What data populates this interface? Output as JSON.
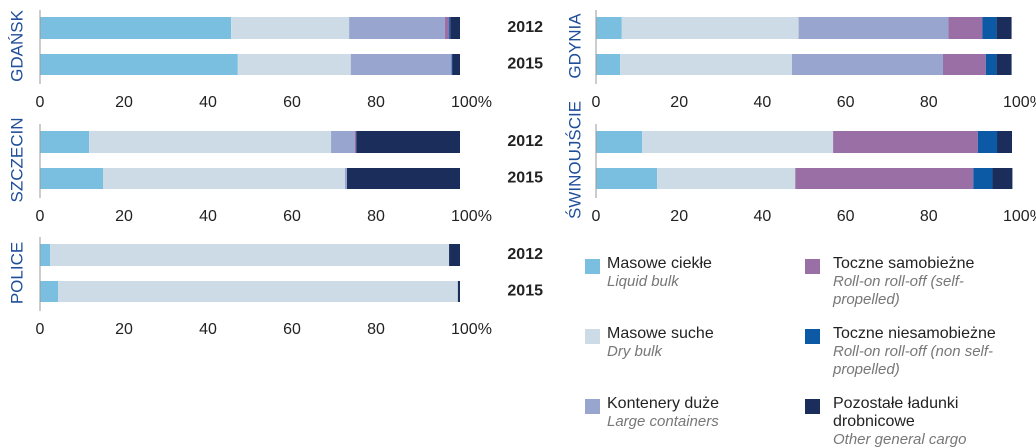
{
  "legend": [
    {
      "name": "Masowe ciekłe",
      "name_en": "Liquid bulk",
      "color": "#7bbfe0"
    },
    {
      "name": "Masowe suche",
      "name_en": "Dry bulk",
      "color": "#cddbe6"
    },
    {
      "name": "Kontenery duże",
      "name_en": "Large containers",
      "color": "#98a5cf"
    },
    {
      "name": "Toczne samobieżne",
      "name_en": "Roll-on roll-off (self-propelled)",
      "color": "#9a6fa6"
    },
    {
      "name": "Toczne niesamobieżne",
      "name_en": "Roll-on roll-off (non self-propelled)",
      "color": "#0c5aa5"
    },
    {
      "name": "Pozostałe ładunki drobnicowe",
      "name_en": "Other general cargo",
      "color": "#1b2d5b"
    }
  ],
  "chart_data": [
    {
      "type": "stacked-bar",
      "title": "GDAŃSK",
      "categories": [
        "2012",
        "2015"
      ],
      "series": [
        {
          "values": [
            45.5,
            47.1
          ]
        },
        {
          "values": [
            28.1,
            26.9
          ]
        },
        {
          "values": [
            22.8,
            24.0
          ]
        },
        {
          "values": [
            1.0,
            0
          ]
        },
        {
          "values": [
            0.3,
            0.2
          ]
        },
        {
          "values": [
            2.3,
            1.8
          ]
        }
      ],
      "xlim": [
        0,
        100
      ],
      "xticks": [
        0,
        20,
        40,
        60,
        80,
        {
          "value": 100,
          "label": "100%"
        }
      ]
    },
    {
      "type": "stacked-bar",
      "title": "SZCZECIN",
      "categories": [
        "2012",
        "2015"
      ],
      "series": [
        {
          "values": [
            11.7,
            15.0
          ]
        },
        {
          "values": [
            57.6,
            57.6
          ]
        },
        {
          "values": [
            5.7,
            0.5
          ]
        },
        {
          "values": [
            0.3,
            0
          ]
        },
        {
          "values": [
            0,
            0
          ]
        },
        {
          "values": [
            24.7,
            26.9
          ]
        }
      ],
      "xlim": [
        0,
        100
      ],
      "xticks": [
        0,
        20,
        40,
        60,
        80,
        {
          "value": 100,
          "label": "100%"
        }
      ]
    },
    {
      "type": "stacked-bar",
      "title": "POLICE",
      "categories": [
        "2012",
        "2015"
      ],
      "series": [
        {
          "values": [
            2.4,
            4.3
          ]
        },
        {
          "values": [
            95.0,
            95.2
          ]
        },
        {
          "values": [
            0,
            0
          ]
        },
        {
          "values": [
            0,
            0
          ]
        },
        {
          "values": [
            0,
            0
          ]
        },
        {
          "values": [
            2.6,
            0.5
          ]
        }
      ],
      "xlim": [
        0,
        100
      ],
      "xticks": [
        0,
        20,
        40,
        60,
        80,
        {
          "value": 100,
          "label": "100%"
        }
      ]
    },
    {
      "type": "stacked-bar",
      "title": "GDYNIA",
      "series": [
        {
          "values": [
            6.2,
            5.8
          ]
        },
        {
          "values": [
            42.5,
            41.3
          ]
        },
        {
          "values": [
            36.0,
            36.3
          ]
        },
        {
          "values": [
            8.2,
            10.3
          ]
        },
        {
          "values": [
            3.4,
            2.6
          ]
        },
        {
          "values": [
            3.6,
            3.6
          ]
        }
      ],
      "xlim": [
        0,
        100
      ],
      "xticks": [
        0,
        20,
        40,
        60,
        80,
        {
          "value": 100,
          "label": "100%"
        }
      ]
    },
    {
      "type": "stacked-bar",
      "title": "ŚWINOUJŚCIE",
      "series": [
        {
          "values": [
            11.1,
            14.7
          ]
        },
        {
          "values": [
            45.9,
            33.2
          ]
        },
        {
          "values": [
            0,
            0
          ]
        },
        {
          "values": [
            34.8,
            42.8
          ]
        },
        {
          "values": [
            4.6,
            4.6
          ]
        },
        {
          "values": [
            3.6,
            4.8
          ]
        }
      ],
      "xlim": [
        0,
        100
      ],
      "xticks": [
        0,
        20,
        40,
        60,
        80,
        {
          "value": 100,
          "label": "100%"
        }
      ]
    }
  ]
}
